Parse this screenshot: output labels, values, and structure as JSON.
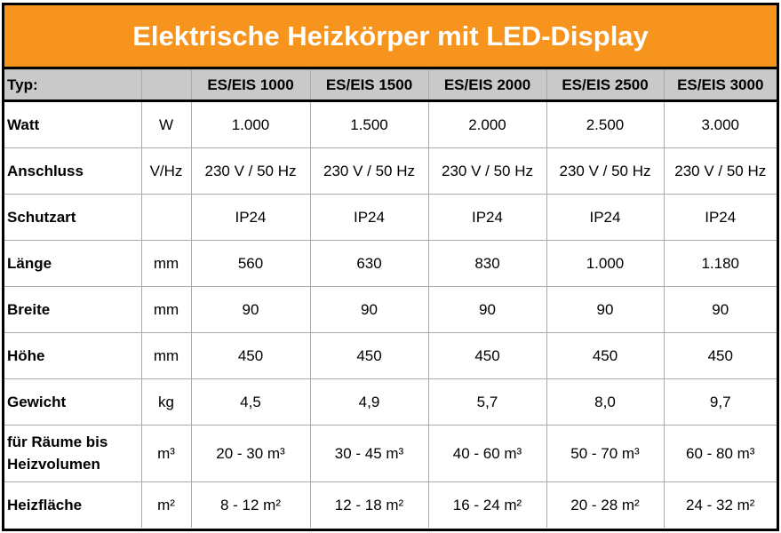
{
  "header": {
    "title": "Elektrische Heizkörper mit LED-Display"
  },
  "table": {
    "header": [
      "Typ:",
      null,
      "ES/EIS 1000",
      "ES/EIS 1500",
      "ES/EIS 2000",
      "ES/EIS 2500",
      "ES/EIS 3000"
    ],
    "rows": [
      [
        "Watt",
        "W",
        "1.000",
        "1.500",
        "2.000",
        "2.500",
        "3.000"
      ],
      [
        "Anschluss",
        "V/Hz",
        "230 V / 50 Hz",
        "230 V / 50 Hz",
        "230 V / 50 Hz",
        "230 V / 50 Hz",
        "230 V / 50 Hz"
      ],
      [
        "Schutzart",
        null,
        "IP24",
        "IP24",
        "IP24",
        "IP24",
        "IP24"
      ],
      [
        "Länge",
        "mm",
        "560",
        "630",
        "830",
        "1.000",
        "1.180"
      ],
      [
        "Breite",
        "mm",
        "90",
        "90",
        "90",
        "90",
        "90"
      ],
      [
        "Höhe",
        "mm",
        "450",
        "450",
        "450",
        "450",
        "450"
      ],
      [
        "Gewicht",
        "kg",
        "4,5",
        "4,9",
        "5,7",
        "8,0",
        "9,7"
      ],
      [
        [
          "für Räume bis",
          "Heizvolumen"
        ],
        "m³",
        "20 - 30 m³",
        "30 - 45 m³",
        "40 - 60 m³",
        "50 - 70 m³",
        "60 - 80 m³"
      ],
      [
        "Heizfläche",
        "m²",
        "8 - 12 m²",
        "12 - 18 m²",
        "16 - 24 m²",
        "20 - 28 m²",
        "24 - 32 m²"
      ]
    ]
  }
}
